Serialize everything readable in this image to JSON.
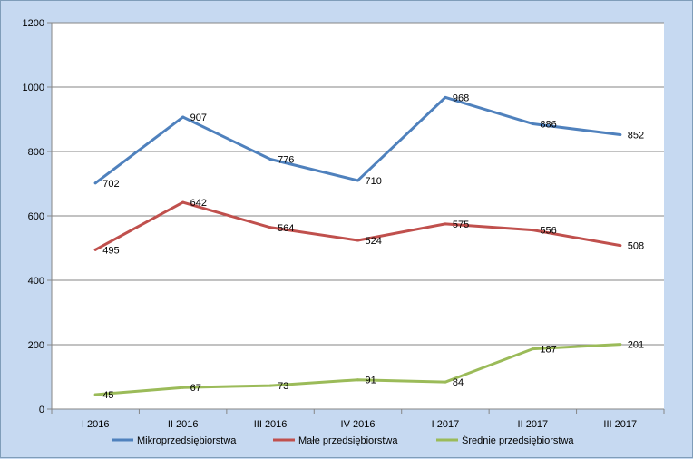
{
  "chart_data": {
    "type": "line",
    "categories": [
      "I 2016",
      "II 2016",
      "III 2016",
      "IV 2016",
      "I 2017",
      "II 2017",
      "III 2017"
    ],
    "series": [
      {
        "name": "Mikroprzedsiębiorstwa",
        "color": "#4f81bd",
        "values": [
          702,
          907,
          776,
          710,
          968,
          886,
          852
        ]
      },
      {
        "name": "Małe przedsiębiorstwa",
        "color": "#c0504d",
        "values": [
          495,
          642,
          564,
          524,
          575,
          556,
          508
        ]
      },
      {
        "name": "Średnie przedsiębiorstwa",
        "color": "#9bbb59",
        "values": [
          45,
          67,
          73,
          91,
          84,
          187,
          201
        ]
      }
    ],
    "ylim": [
      0,
      1200
    ],
    "yticks": [
      0,
      200,
      400,
      600,
      800,
      1000,
      1200
    ],
    "grid": true,
    "legend_position": "bottom",
    "data_labels": true
  }
}
